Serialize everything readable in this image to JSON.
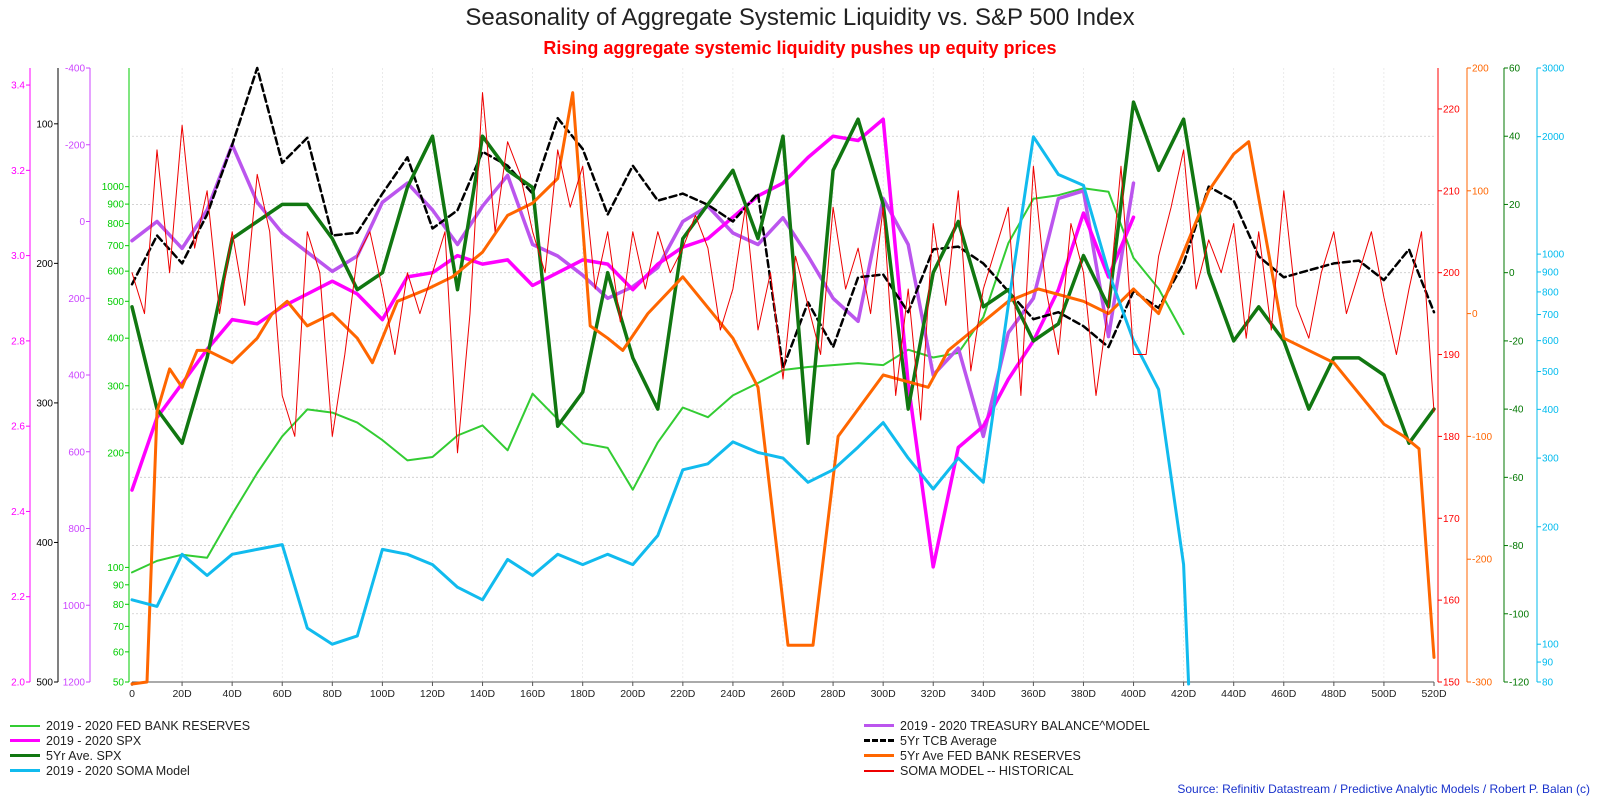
{
  "title": "Seasonality of Aggregate Systemic Liquidity vs. S&P 500 Index",
  "subtitle": "Rising aggregate systemic liquidity pushes up equity prices",
  "source": "Source: Refinitiv Datastream / Predictive Analytic Models / Robert P. Balan (c)",
  "chart_data": {
    "type": "line",
    "x_ticks": [
      "0",
      "20D",
      "40D",
      "60D",
      "80D",
      "100D",
      "120D",
      "140D",
      "160D",
      "180D",
      "200D",
      "220D",
      "240D",
      "260D",
      "280D",
      "300D",
      "320D",
      "340D",
      "360D",
      "380D",
      "400D",
      "420D",
      "440D",
      "460D",
      "480D",
      "500D",
      "520D"
    ],
    "xlim": [
      0,
      520
    ],
    "grid": true,
    "axes": {
      "magenta_left": {
        "color": "#ff00ff",
        "ticks": [
          "3.4",
          "3.2",
          "3.0",
          "2.8",
          "2.6",
          "2.4",
          "2.2",
          "2.0"
        ]
      },
      "black_left": {
        "color": "#000000",
        "ticks": [
          "100",
          "200",
          "300",
          "400",
          "500"
        ]
      },
      "purple_left": {
        "color": "#cc44ff",
        "ticks": [
          "-400",
          "-200",
          "0",
          "200",
          "400",
          "600",
          "800",
          "1000",
          "1200"
        ]
      },
      "green_left": {
        "color": "#00cc00",
        "ticks": [
          "1000",
          "900",
          "800",
          "700",
          "600",
          "500",
          "400",
          "300",
          "200",
          "100",
          "90",
          "80",
          "70",
          "60",
          "50"
        ]
      },
      "red_right": {
        "color": "#ff0000",
        "ticks": [
          "220",
          "210",
          "200",
          "190",
          "180",
          "170",
          "160",
          "150"
        ]
      },
      "orange_right": {
        "color": "#ff6600",
        "ticks": [
          "200",
          "100",
          "0",
          "-100",
          "-200",
          "-300"
        ]
      },
      "darkgreen_right": {
        "color": "#007700",
        "ticks": [
          "60",
          "40",
          "20",
          "0",
          "-20",
          "-40",
          "-60",
          "-80",
          "-100",
          "-120"
        ]
      },
      "cyan_right": {
        "color": "#00bbee",
        "ticks": [
          "3000",
          "2000",
          "1000",
          "900",
          "800",
          "700",
          "600",
          "500",
          "400",
          "300",
          "200",
          "100",
          "90",
          "80"
        ]
      }
    },
    "series": [
      {
        "name": "2019 - 2020 FED BANK RESERVES",
        "color": "#33cc33",
        "width": 2,
        "x": [
          0,
          10,
          20,
          30,
          40,
          50,
          60,
          70,
          80,
          90,
          100,
          110,
          120,
          130,
          140,
          150,
          160,
          170,
          180,
          190,
          200,
          210,
          220,
          230,
          240,
          250,
          260,
          270,
          280,
          290,
          300,
          310,
          320,
          330,
          340,
          350,
          360,
          370,
          380,
          390,
          400,
          410,
          420
        ],
        "y": [
          97,
          104,
          108,
          106,
          138,
          177,
          221,
          260,
          255,
          240,
          216,
          191,
          195,
          222,
          236,
          203,
          286,
          245,
          212,
          206,
          160,
          213,
          263,
          248,
          283,
          305,
          330,
          336,
          340,
          344,
          340,
          373,
          356,
          366,
          454,
          710,
          930,
          950,
          990,
          970,
          650,
          540,
          410
        ]
      },
      {
        "name": "2019 - 2020 TREASURY BALANCE^MODEL",
        "color": "#bb55ee",
        "width": 3.5,
        "x": [
          0,
          10,
          20,
          30,
          40,
          50,
          60,
          70,
          80,
          90,
          100,
          110,
          120,
          130,
          140,
          150,
          160,
          170,
          180,
          190,
          200,
          210,
          220,
          230,
          240,
          250,
          260,
          270,
          280,
          290,
          300,
          310,
          320,
          330,
          340,
          350,
          360,
          370,
          380,
          390,
          400
        ],
        "y": [
          50,
          0,
          70,
          -30,
          -200,
          -50,
          30,
          80,
          130,
          90,
          -50,
          -100,
          -30,
          60,
          -40,
          -120,
          60,
          90,
          140,
          200,
          170,
          120,
          0,
          -40,
          30,
          60,
          -10,
          90,
          200,
          260,
          -60,
          60,
          400,
          330,
          560,
          290,
          200,
          -60,
          -80,
          300,
          -100
        ]
      },
      {
        "name": "2019 - 2020 SPX",
        "color": "#ff00ff",
        "width": 3.5,
        "x": [
          0,
          10,
          20,
          30,
          40,
          50,
          60,
          70,
          80,
          90,
          100,
          110,
          120,
          130,
          140,
          150,
          160,
          170,
          180,
          190,
          200,
          210,
          220,
          230,
          240,
          250,
          260,
          270,
          280,
          290,
          300,
          310,
          320,
          330,
          340,
          350,
          360,
          370,
          380,
          390,
          400
        ],
        "y": [
          2.45,
          2.62,
          2.7,
          2.78,
          2.85,
          2.84,
          2.88,
          2.91,
          2.94,
          2.91,
          2.85,
          2.95,
          2.96,
          3.0,
          2.98,
          2.99,
          2.93,
          2.96,
          2.99,
          2.98,
          2.92,
          2.98,
          3.02,
          3.04,
          3.09,
          3.14,
          3.17,
          3.23,
          3.28,
          3.27,
          3.32,
          2.7,
          2.27,
          2.55,
          2.6,
          2.71,
          2.8,
          2.92,
          3.1,
          2.95,
          3.09
        ]
      },
      {
        "name": "5Yr TCB Average",
        "color": "#000000",
        "width": 2.5,
        "dash": "7,4",
        "x": [
          0,
          10,
          20,
          30,
          40,
          50,
          60,
          70,
          80,
          90,
          100,
          110,
          120,
          130,
          140,
          150,
          160,
          170,
          180,
          190,
          200,
          210,
          220,
          230,
          240,
          250,
          260,
          270,
          280,
          290,
          300,
          310,
          320,
          330,
          340,
          350,
          360,
          370,
          380,
          390,
          400,
          410,
          420,
          430,
          440,
          450,
          460,
          470,
          480,
          490,
          500,
          510,
          520
        ],
        "y": [
          215,
          180,
          200,
          165,
          115,
          60,
          128,
          110,
          180,
          178,
          150,
          124,
          175,
          162,
          120,
          130,
          150,
          96,
          118,
          165,
          130,
          155,
          150,
          158,
          170,
          150,
          275,
          228,
          260,
          210,
          208,
          235,
          190,
          188,
          200,
          220,
          240,
          235,
          245,
          260,
          220,
          232,
          200,
          145,
          155,
          195,
          210,
          205,
          200,
          198,
          212,
          190,
          235
        ]
      },
      {
        "name": "5Yr Ave. SPX",
        "color": "#117711",
        "width": 3.5,
        "x": [
          0,
          10,
          20,
          30,
          40,
          50,
          60,
          70,
          80,
          90,
          100,
          110,
          120,
          130,
          140,
          150,
          160,
          170,
          180,
          190,
          200,
          210,
          220,
          230,
          240,
          250,
          260,
          270,
          280,
          290,
          300,
          310,
          320,
          330,
          340,
          350,
          360,
          370,
          380,
          390,
          400,
          410,
          420,
          430,
          440,
          450,
          460,
          470,
          480,
          490,
          500,
          510,
          520
        ],
        "y": [
          -10,
          -40,
          -50,
          -25,
          10,
          15,
          20,
          20,
          10,
          -5,
          0,
          25,
          40,
          -5,
          40,
          30,
          25,
          -45,
          -35,
          0,
          -25,
          -40,
          10,
          20,
          30,
          10,
          40,
          -50,
          30,
          45,
          20,
          -40,
          0,
          15,
          -10,
          -5,
          -20,
          -15,
          5,
          -10,
          50,
          30,
          45,
          0,
          -20,
          -10,
          -20,
          -40,
          -25,
          -25,
          -30,
          -50,
          -40
        ]
      },
      {
        "name": "5Yr Ave FED BANK RESERVES",
        "color": "#ff6600",
        "width": 3,
        "x": [
          0,
          6,
          10,
          15,
          20,
          26,
          30,
          40,
          50,
          56,
          62,
          70,
          80,
          90,
          96,
          106,
          118,
          128,
          140,
          150,
          160,
          170,
          176,
          183,
          190,
          196,
          206,
          220,
          240,
          250,
          262,
          272,
          282,
          300,
          318,
          326,
          338,
          350,
          362,
          380,
          390,
          400,
          410,
          420,
          430,
          440,
          446,
          460,
          480,
          500,
          508,
          514,
          520
        ],
        "y": [
          -305,
          -300,
          -80,
          -45,
          -60,
          -30,
          -30,
          -40,
          -20,
          0,
          10,
          -10,
          0,
          -20,
          -40,
          10,
          20,
          30,
          50,
          80,
          90,
          110,
          180,
          -10,
          -20,
          -30,
          0,
          30,
          -20,
          -60,
          -270,
          -270,
          -100,
          -50,
          -60,
          -30,
          -10,
          10,
          20,
          10,
          0,
          20,
          0,
          50,
          100,
          130,
          140,
          -20,
          -40,
          -90,
          -100,
          -110,
          -280
        ]
      },
      {
        "name": "2019 - 2020 SOMA Model",
        "color": "#11bbee",
        "width": 3,
        "x": [
          0,
          10,
          20,
          30,
          40,
          50,
          60,
          70,
          80,
          90,
          100,
          110,
          120,
          130,
          140,
          150,
          160,
          170,
          180,
          190,
          200,
          210,
          220,
          230,
          240,
          250,
          260,
          270,
          280,
          290,
          300,
          310,
          320,
          330,
          340,
          350,
          360,
          370,
          380,
          390,
          400,
          410,
          420,
          422
        ],
        "y": [
          130,
          125,
          170,
          150,
          170,
          175,
          180,
          110,
          100,
          105,
          175,
          170,
          160,
          140,
          130,
          165,
          150,
          170,
          160,
          170,
          160,
          190,
          280,
          290,
          330,
          310,
          300,
          260,
          280,
          320,
          370,
          300,
          250,
          300,
          260,
          740,
          2000,
          1600,
          1500,
          900,
          600,
          450,
          160,
          70
        ]
      },
      {
        "name": "SOMA MODEL -- HISTORICAL",
        "color": "#ee0000",
        "width": 1,
        "x": [
          0,
          5,
          10,
          15,
          20,
          25,
          30,
          35,
          40,
          45,
          50,
          55,
          60,
          65,
          70,
          75,
          80,
          85,
          90,
          95,
          100,
          105,
          110,
          115,
          120,
          125,
          130,
          135,
          140,
          145,
          150,
          155,
          160,
          165,
          170,
          175,
          180,
          185,
          190,
          195,
          200,
          205,
          210,
          215,
          220,
          225,
          230,
          235,
          240,
          245,
          250,
          255,
          260,
          265,
          270,
          275,
          280,
          285,
          290,
          295,
          300,
          305,
          310,
          315,
          320,
          325,
          330,
          335,
          340,
          345,
          350,
          355,
          360,
          365,
          370,
          375,
          380,
          385,
          390,
          395,
          400,
          405,
          410,
          415,
          420,
          425,
          430,
          435,
          440,
          445,
          450,
          455,
          460,
          465,
          470,
          475,
          480,
          485,
          490,
          495,
          500,
          505,
          510,
          515,
          520
        ],
        "y": [
          200,
          195,
          215,
          200,
          218,
          203,
          210,
          195,
          205,
          196,
          212,
          205,
          185,
          180,
          205,
          200,
          180,
          190,
          202,
          205,
          198,
          190,
          200,
          195,
          200,
          205,
          178,
          195,
          222,
          205,
          216,
          212,
          205,
          200,
          215,
          208,
          213,
          198,
          205,
          194,
          205,
          198,
          205,
          200,
          203,
          207,
          203,
          193,
          198,
          208,
          193,
          200,
          187,
          202,
          196,
          190,
          208,
          198,
          203,
          195,
          208,
          185,
          198,
          182,
          206,
          196,
          210,
          188,
          198,
          203,
          208,
          185,
          213,
          198,
          190,
          206,
          200,
          185,
          196,
          213,
          190,
          190,
          202,
          208,
          215,
          198,
          204,
          200,
          206,
          192,
          205,
          193,
          210,
          196,
          192,
          200,
          205,
          195,
          200,
          205,
          197,
          190,
          198,
          205,
          183
        ]
      }
    ]
  }
}
